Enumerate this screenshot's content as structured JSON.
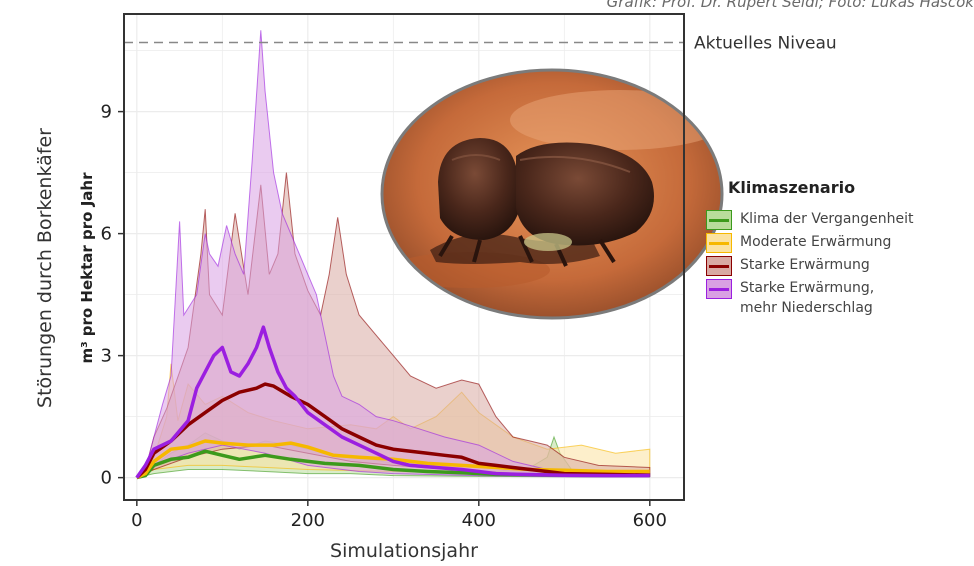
{
  "credit": "Grafik: Prof. Dr. Rupert Seidl; Foto: Lukas Hascok",
  "chart_data": {
    "type": "area",
    "xlabel": "Simulationsjahr",
    "ylabel_line1": "Störungen durch Borkenkäfer",
    "ylabel_line2_unit": "m³",
    "ylabel_line2": "pro Hektar pro Jahr",
    "xlim": [
      -15,
      640
    ],
    "ylim": [
      -0.55,
      11.4
    ],
    "x_ticks": [
      0,
      200,
      400,
      600
    ],
    "y_ticks": [
      0,
      3,
      6,
      9
    ],
    "x_tick_labels": [
      "0",
      "200",
      "400",
      "600"
    ],
    "y_tick_labels": [
      "0",
      "3",
      "6",
      "9"
    ],
    "grid": true,
    "legend_position": "right",
    "legend_title": "Klimaszenario",
    "reference_line": {
      "y": 10.7,
      "label": "Aktuelles Niveau",
      "style": "dashed"
    },
    "series": [
      {
        "name": "Klima der Vergangenheit",
        "color": "#3c9a1c",
        "fill": "#b9dc9b",
        "upper": [
          [
            0,
            0
          ],
          [
            10,
            0.05
          ],
          [
            20,
            0.3
          ],
          [
            40,
            0.6
          ],
          [
            60,
            0.8
          ],
          [
            80,
            1.1
          ],
          [
            100,
            0.9
          ],
          [
            120,
            0.7
          ],
          [
            150,
            0.9
          ],
          [
            180,
            0.8
          ],
          [
            220,
            0.6
          ],
          [
            260,
            0.5
          ],
          [
            300,
            0.35
          ],
          [
            340,
            0.25
          ],
          [
            380,
            0.2
          ],
          [
            420,
            0.15
          ],
          [
            460,
            0.25
          ],
          [
            480,
            0.5
          ],
          [
            488,
            1.0
          ],
          [
            495,
            0.6
          ],
          [
            510,
            0.15
          ],
          [
            550,
            0.1
          ],
          [
            600,
            0.1
          ]
        ],
        "lower": [
          [
            0,
            0
          ],
          [
            20,
            0.1
          ],
          [
            60,
            0.2
          ],
          [
            100,
            0.2
          ],
          [
            150,
            0.15
          ],
          [
            200,
            0.1
          ],
          [
            250,
            0.1
          ],
          [
            300,
            0.05
          ],
          [
            400,
            0.03
          ],
          [
            500,
            0.02
          ],
          [
            600,
            0.02
          ]
        ],
        "mean": [
          [
            0,
            0
          ],
          [
            10,
            0.05
          ],
          [
            20,
            0.3
          ],
          [
            40,
            0.45
          ],
          [
            60,
            0.5
          ],
          [
            80,
            0.65
          ],
          [
            100,
            0.55
          ],
          [
            120,
            0.45
          ],
          [
            150,
            0.55
          ],
          [
            180,
            0.45
          ],
          [
            220,
            0.35
          ],
          [
            260,
            0.3
          ],
          [
            300,
            0.2
          ],
          [
            340,
            0.15
          ],
          [
            380,
            0.12
          ],
          [
            420,
            0.08
          ],
          [
            460,
            0.07
          ],
          [
            500,
            0.06
          ],
          [
            550,
            0.05
          ],
          [
            600,
            0.05
          ]
        ]
      },
      {
        "name": "Moderate Erwärmung",
        "color": "#f6b800",
        "fill": "#fbe2a0",
        "upper": [
          [
            0,
            0
          ],
          [
            10,
            0.1
          ],
          [
            20,
            0.5
          ],
          [
            35,
            1.5
          ],
          [
            40,
            2.8
          ],
          [
            48,
            1.4
          ],
          [
            60,
            2.3
          ],
          [
            80,
            1.8
          ],
          [
            100,
            2.0
          ],
          [
            130,
            1.6
          ],
          [
            160,
            1.4
          ],
          [
            200,
            1.2
          ],
          [
            250,
            1.3
          ],
          [
            280,
            1.2
          ],
          [
            300,
            1.5
          ],
          [
            320,
            1.2
          ],
          [
            350,
            1.5
          ],
          [
            380,
            2.1
          ],
          [
            400,
            1.6
          ],
          [
            440,
            1.0
          ],
          [
            480,
            0.7
          ],
          [
            520,
            0.8
          ],
          [
            560,
            0.6
          ],
          [
            600,
            0.7
          ]
        ],
        "lower": [
          [
            0,
            0
          ],
          [
            20,
            0.2
          ],
          [
            60,
            0.3
          ],
          [
            100,
            0.3
          ],
          [
            200,
            0.2
          ],
          [
            300,
            0.15
          ],
          [
            400,
            0.1
          ],
          [
            500,
            0.08
          ],
          [
            600,
            0.08
          ]
        ],
        "mean": [
          [
            0,
            0
          ],
          [
            10,
            0.1
          ],
          [
            20,
            0.4
          ],
          [
            40,
            0.7
          ],
          [
            60,
            0.75
          ],
          [
            80,
            0.9
          ],
          [
            100,
            0.85
          ],
          [
            130,
            0.8
          ],
          [
            160,
            0.8
          ],
          [
            180,
            0.85
          ],
          [
            200,
            0.75
          ],
          [
            230,
            0.55
          ],
          [
            260,
            0.5
          ],
          [
            300,
            0.45
          ],
          [
            340,
            0.35
          ],
          [
            380,
            0.3
          ],
          [
            420,
            0.25
          ],
          [
            460,
            0.2
          ],
          [
            500,
            0.18
          ],
          [
            550,
            0.15
          ],
          [
            600,
            0.15
          ]
        ]
      },
      {
        "name": "Starke Erwärmung",
        "color": "#8b0000",
        "fill": "#d9a9a3",
        "upper": [
          [
            0,
            0
          ],
          [
            10,
            0.2
          ],
          [
            20,
            1.0
          ],
          [
            35,
            1.7
          ],
          [
            50,
            2.6
          ],
          [
            60,
            3.2
          ],
          [
            75,
            5.5
          ],
          [
            80,
            6.6
          ],
          [
            85,
            4.5
          ],
          [
            100,
            4.0
          ],
          [
            115,
            6.5
          ],
          [
            130,
            4.5
          ],
          [
            145,
            7.2
          ],
          [
            155,
            5.0
          ],
          [
            165,
            5.5
          ],
          [
            175,
            7.5
          ],
          [
            185,
            5.5
          ],
          [
            200,
            4.6
          ],
          [
            215,
            4.0
          ],
          [
            225,
            5.0
          ],
          [
            235,
            6.4
          ],
          [
            245,
            5.0
          ],
          [
            260,
            4.0
          ],
          [
            280,
            3.5
          ],
          [
            300,
            3.0
          ],
          [
            320,
            2.5
          ],
          [
            350,
            2.2
          ],
          [
            380,
            2.4
          ],
          [
            400,
            2.3
          ],
          [
            420,
            1.5
          ],
          [
            440,
            1.0
          ],
          [
            460,
            0.9
          ],
          [
            480,
            0.8
          ],
          [
            500,
            0.5
          ],
          [
            540,
            0.3
          ],
          [
            600,
            0.25
          ]
        ],
        "lower": [
          [
            0,
            0
          ],
          [
            20,
            0.2
          ],
          [
            60,
            0.5
          ],
          [
            100,
            0.7
          ],
          [
            150,
            0.8
          ],
          [
            200,
            0.6
          ],
          [
            250,
            0.4
          ],
          [
            300,
            0.3
          ],
          [
            400,
            0.15
          ],
          [
            500,
            0.05
          ],
          [
            600,
            0.03
          ]
        ],
        "mean": [
          [
            0,
            0
          ],
          [
            10,
            0.2
          ],
          [
            20,
            0.6
          ],
          [
            40,
            0.9
          ],
          [
            60,
            1.3
          ],
          [
            80,
            1.6
          ],
          [
            100,
            1.9
          ],
          [
            120,
            2.1
          ],
          [
            140,
            2.2
          ],
          [
            150,
            2.3
          ],
          [
            160,
            2.25
          ],
          [
            180,
            2.0
          ],
          [
            200,
            1.8
          ],
          [
            220,
            1.5
          ],
          [
            240,
            1.2
          ],
          [
            260,
            1.0
          ],
          [
            280,
            0.8
          ],
          [
            300,
            0.7
          ],
          [
            320,
            0.65
          ],
          [
            340,
            0.6
          ],
          [
            360,
            0.55
          ],
          [
            380,
            0.5
          ],
          [
            400,
            0.35
          ],
          [
            420,
            0.3
          ],
          [
            440,
            0.25
          ],
          [
            460,
            0.2
          ],
          [
            480,
            0.15
          ],
          [
            500,
            0.1
          ],
          [
            550,
            0.08
          ],
          [
            600,
            0.06
          ]
        ]
      },
      {
        "name": "Starke Erwärmung, mehr Niederschlag",
        "color": "#9b1fe0",
        "fill": "#d9a0e3",
        "upper": [
          [
            0,
            0
          ],
          [
            10,
            0.2
          ],
          [
            20,
            1.0
          ],
          [
            30,
            1.8
          ],
          [
            40,
            2.5
          ],
          [
            50,
            6.3
          ],
          [
            55,
            4.0
          ],
          [
            70,
            4.5
          ],
          [
            80,
            6.0
          ],
          [
            85,
            5.5
          ],
          [
            95,
            5.2
          ],
          [
            105,
            6.2
          ],
          [
            115,
            5.5
          ],
          [
            125,
            5.0
          ],
          [
            135,
            7.8
          ],
          [
            145,
            11.0
          ],
          [
            150,
            9.5
          ],
          [
            160,
            7.5
          ],
          [
            170,
            6.5
          ],
          [
            180,
            6.0
          ],
          [
            190,
            5.5
          ],
          [
            200,
            5.0
          ],
          [
            210,
            4.5
          ],
          [
            220,
            3.5
          ],
          [
            230,
            2.5
          ],
          [
            240,
            2.0
          ],
          [
            260,
            1.8
          ],
          [
            280,
            1.5
          ],
          [
            300,
            1.4
          ],
          [
            330,
            1.2
          ],
          [
            360,
            1.0
          ],
          [
            400,
            0.8
          ],
          [
            440,
            0.4
          ],
          [
            480,
            0.2
          ],
          [
            540,
            0.1
          ],
          [
            600,
            0.1
          ]
        ],
        "lower": [
          [
            0,
            0
          ],
          [
            20,
            0.3
          ],
          [
            60,
            0.6
          ],
          [
            100,
            0.8
          ],
          [
            150,
            0.6
          ],
          [
            200,
            0.3
          ],
          [
            260,
            0.15
          ],
          [
            300,
            0.1
          ],
          [
            400,
            0.05
          ],
          [
            500,
            0.02
          ],
          [
            600,
            0.02
          ]
        ],
        "mean": [
          [
            0,
            0
          ],
          [
            10,
            0.3
          ],
          [
            20,
            0.7
          ],
          [
            40,
            0.9
          ],
          [
            60,
            1.4
          ],
          [
            70,
            2.2
          ],
          [
            80,
            2.6
          ],
          [
            90,
            3.0
          ],
          [
            100,
            3.2
          ],
          [
            110,
            2.6
          ],
          [
            120,
            2.5
          ],
          [
            130,
            2.8
          ],
          [
            140,
            3.2
          ],
          [
            148,
            3.7
          ],
          [
            155,
            3.2
          ],
          [
            165,
            2.6
          ],
          [
            175,
            2.2
          ],
          [
            185,
            2.0
          ],
          [
            200,
            1.6
          ],
          [
            220,
            1.3
          ],
          [
            240,
            1.0
          ],
          [
            260,
            0.8
          ],
          [
            280,
            0.6
          ],
          [
            300,
            0.4
          ],
          [
            320,
            0.3
          ],
          [
            350,
            0.25
          ],
          [
            380,
            0.2
          ],
          [
            400,
            0.15
          ],
          [
            420,
            0.1
          ],
          [
            450,
            0.08
          ],
          [
            500,
            0.06
          ],
          [
            550,
            0.05
          ],
          [
            600,
            0.05
          ]
        ]
      }
    ]
  }
}
